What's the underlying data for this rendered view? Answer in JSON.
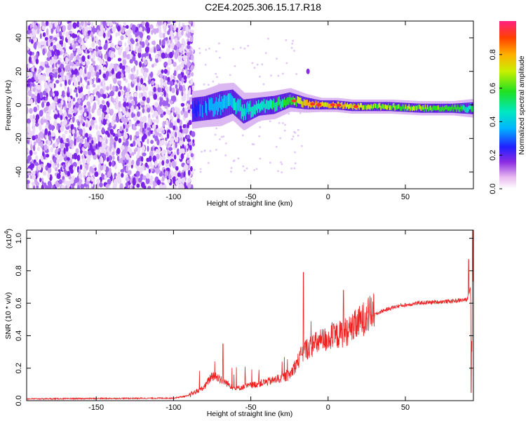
{
  "title": "C2E4.2025.306.15.17.R18",
  "chart_data": [
    {
      "type": "heatmap",
      "name": "spectrogram",
      "xlabel": "Height of straight line (km)",
      "ylabel": "Frequency (Hz)",
      "xlim": [
        -195,
        94
      ],
      "ylim": [
        -50,
        50
      ],
      "xticks": [
        -150,
        -100,
        -50,
        0,
        50
      ],
      "yticks": [
        -40,
        -20,
        0,
        20,
        40
      ],
      "colorbar": {
        "label": "Normalized spectral amplitude",
        "range": [
          0,
          1
        ],
        "ticks": [
          "0.0",
          "0.2",
          "0.4",
          "0.6",
          "0.8"
        ]
      },
      "noise_region_km": [
        -195,
        -87
      ],
      "ridge": {
        "x": [
          -88,
          -80,
          -70,
          -62,
          -55,
          -45,
          -35,
          -25,
          -15,
          -5,
          5,
          15,
          25,
          40,
          60,
          80,
          94
        ],
        "freq": [
          -3,
          -2,
          0,
          2,
          -4,
          -1,
          0,
          3,
          1,
          0,
          0,
          -1,
          -1,
          -1,
          -2,
          -2,
          -2
        ],
        "amplitude": [
          0.35,
          0.4,
          0.45,
          0.5,
          0.5,
          0.55,
          0.6,
          0.7,
          0.85,
          0.9,
          0.9,
          0.85,
          0.8,
          0.75,
          0.75,
          0.7,
          0.6
        ],
        "width_hz": [
          8,
          8,
          9,
          8,
          8,
          6,
          6,
          5,
          4,
          3,
          3,
          3,
          3,
          3,
          3,
          3,
          4
        ]
      },
      "outlier_point": {
        "x": -13,
        "freq": 20
      }
    },
    {
      "type": "line",
      "name": "snr",
      "xlabel": "Height of straight line (km)",
      "ylabel": "SNR (10 * v/v)",
      "yscale_label": "(x10",
      "yscale_exp": "4",
      "yscale_close": ")",
      "xlim": [
        -195,
        94
      ],
      "ylim": [
        0,
        1.05
      ],
      "xticks": [
        -150,
        -100,
        -50,
        0,
        50
      ],
      "yticks": [
        "0.0",
        "0.2",
        "0.4",
        "0.6",
        "0.8",
        "1.0"
      ],
      "color": "#ee2222",
      "series": {
        "name": "SNR",
        "x": [
          -195,
          -100,
          -90,
          -80,
          -75,
          -70,
          -60,
          -55,
          -45,
          -35,
          -25,
          -15,
          -5,
          5,
          15,
          25,
          35,
          45,
          60,
          80,
          90,
          92,
          93,
          94
        ],
        "y": [
          0.01,
          0.015,
          0.03,
          0.08,
          0.15,
          0.13,
          0.07,
          0.08,
          0.1,
          0.12,
          0.15,
          0.3,
          0.35,
          0.38,
          0.42,
          0.5,
          0.55,
          0.58,
          0.6,
          0.61,
          0.62,
          0.7,
          0.3,
          0.9
        ],
        "spikes": [
          {
            "x": -68,
            "y": 0.35
          },
          {
            "x": -16,
            "y": 0.79
          },
          {
            "x": 10,
            "y": 0.68
          },
          {
            "x": 91,
            "y": 0.87
          },
          {
            "x": 93.5,
            "y": 1.05
          },
          {
            "x": 92.5,
            "y": 0.05
          }
        ]
      }
    }
  ]
}
